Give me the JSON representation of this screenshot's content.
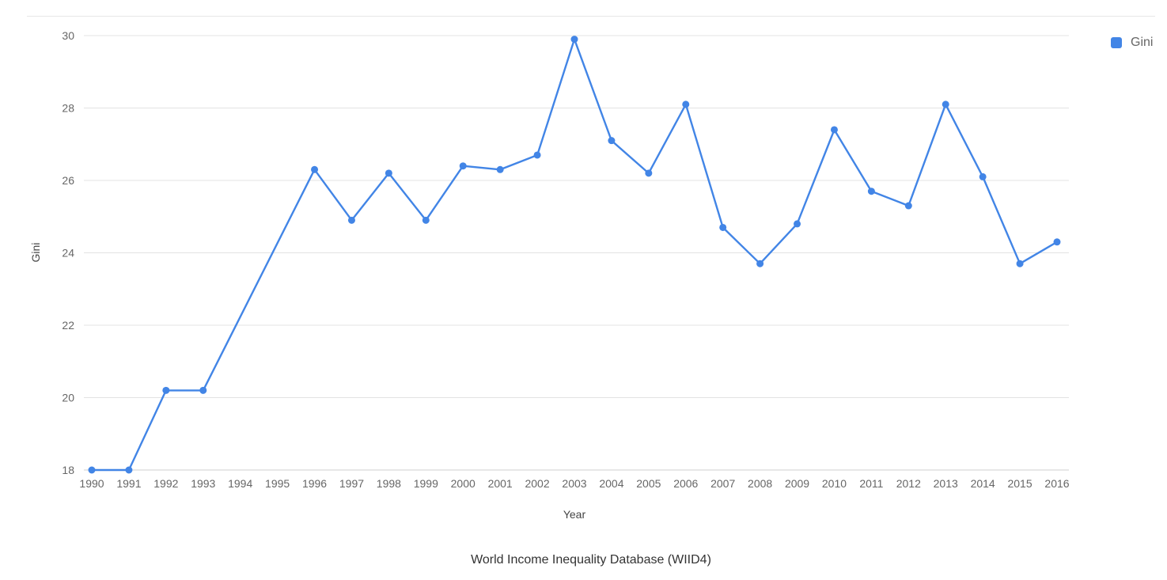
{
  "chart_data": {
    "type": "line",
    "x": [
      "1990",
      "1991",
      "1992",
      "1993",
      "1994",
      "1995",
      "1996",
      "1997",
      "1998",
      "1999",
      "2000",
      "2001",
      "2002",
      "2003",
      "2004",
      "2005",
      "2006",
      "2007",
      "2008",
      "2009",
      "2010",
      "2011",
      "2012",
      "2013",
      "2014",
      "2015",
      "2016"
    ],
    "series": [
      {
        "name": "Gini",
        "color": "#4285e6",
        "values": [
          18.0,
          18.0,
          20.2,
          20.2,
          null,
          null,
          26.3,
          24.9,
          26.2,
          24.9,
          26.4,
          26.3,
          26.7,
          29.9,
          27.1,
          26.2,
          28.1,
          24.7,
          23.7,
          24.8,
          27.4,
          25.7,
          25.3,
          28.1,
          26.1,
          23.7,
          24.3
        ]
      }
    ],
    "xlabel": "Year",
    "ylabel": "Gini",
    "ylim": [
      18,
      30
    ],
    "yticks": [
      18,
      20,
      22,
      24,
      26,
      28,
      30
    ],
    "grid": true,
    "legend": {
      "position": "top-right",
      "label": "Gini"
    }
  },
  "caption": "World Income Inequality Database (WIID4)"
}
